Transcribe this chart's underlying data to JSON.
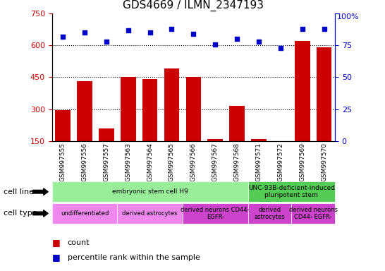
{
  "title": "GDS4669 / ILMN_2347193",
  "samples": [
    "GSM997555",
    "GSM997556",
    "GSM997557",
    "GSM997563",
    "GSM997564",
    "GSM997565",
    "GSM997566",
    "GSM997567",
    "GSM997568",
    "GSM997571",
    "GSM997572",
    "GSM997569",
    "GSM997570"
  ],
  "counts": [
    295,
    430,
    210,
    450,
    440,
    490,
    450,
    160,
    315,
    160,
    148,
    620,
    590
  ],
  "percentiles": [
    82,
    85,
    78,
    87,
    85,
    88,
    84,
    76,
    80,
    78,
    73,
    88,
    88
  ],
  "ylim_left": [
    150,
    750
  ],
  "ylim_right": [
    0,
    100
  ],
  "yticks_left": [
    150,
    300,
    450,
    600,
    750
  ],
  "yticks_right": [
    0,
    25,
    50,
    75,
    100
  ],
  "bar_color": "#cc0000",
  "dot_color": "#0000cc",
  "cell_line_groups": [
    {
      "label": "embryonic stem cell H9",
      "start": 0,
      "end": 9,
      "color": "#99ee99"
    },
    {
      "label": "UNC-93B-deficient-induced\npluripotent stem",
      "start": 9,
      "end": 13,
      "color": "#55cc55"
    }
  ],
  "cell_type_groups": [
    {
      "label": "undifferentiated",
      "start": 0,
      "end": 3,
      "color": "#ee88ee"
    },
    {
      "label": "derived astrocytes",
      "start": 3,
      "end": 6,
      "color": "#ee88ee"
    },
    {
      "label": "derived neurons CD44-\nEGFR-",
      "start": 6,
      "end": 9,
      "color": "#cc44cc"
    },
    {
      "label": "derived\nastrocytes",
      "start": 9,
      "end": 11,
      "color": "#cc44cc"
    },
    {
      "label": "derived neurons\nCD44- EGFR-",
      "start": 11,
      "end": 13,
      "color": "#cc44cc"
    }
  ],
  "left_axis_color": "#cc0000",
  "right_axis_color": "#0000cc",
  "title_fontsize": 11
}
